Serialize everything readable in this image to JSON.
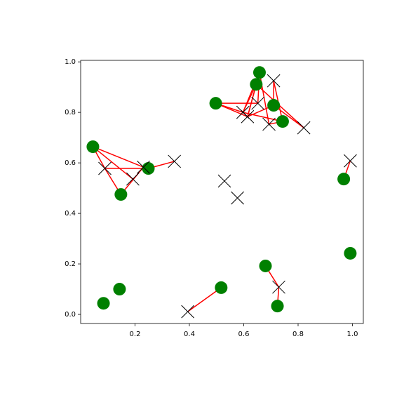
{
  "chart_data": {
    "type": "scatter",
    "xlim": [
      0.0,
      1.04
    ],
    "ylim": [
      -0.036,
      1.006
    ],
    "xticks": [
      0.2,
      0.4,
      0.6,
      0.8,
      {
        "value": 1.0,
        "label": "1.0"
      }
    ],
    "yticks": [
      {
        "value": 0.0,
        "label": "0.0"
      },
      0.2,
      0.4,
      0.6,
      0.8,
      {
        "value": 1.0,
        "label": "1.0"
      }
    ],
    "series": [
      {
        "marker": "circle",
        "color": "#008000",
        "x": [
          0.045,
          0.148,
          0.249,
          0.497,
          0.658,
          0.646,
          0.71,
          0.743,
          0.968,
          0.992,
          0.68,
          0.724,
          0.517,
          0.143,
          0.084
        ],
        "y": [
          0.664,
          0.475,
          0.578,
          0.836,
          0.958,
          0.911,
          0.828,
          0.764,
          0.536,
          0.242,
          0.192,
          0.033,
          0.106,
          0.1,
          0.044
        ]
      },
      {
        "marker": "x",
        "color": "#000000",
        "x": [
          0.089,
          0.231,
          0.192,
          0.345,
          0.529,
          0.577,
          0.394,
          0.729,
          0.992,
          0.614,
          0.597,
          0.652,
          0.693,
          0.71,
          0.821
        ],
        "y": [
          0.578,
          0.583,
          0.536,
          0.606,
          0.528,
          0.461,
          0.011,
          0.108,
          0.608,
          0.783,
          0.8,
          0.836,
          0.753,
          0.925,
          0.739
        ]
      }
    ],
    "link_color": "#ff0000",
    "links": [
      [
        0,
        0
      ],
      [
        0,
        1
      ],
      [
        0,
        2
      ],
      [
        1,
        0
      ],
      [
        1,
        1
      ],
      [
        2,
        0
      ],
      [
        2,
        3
      ],
      [
        3,
        9
      ],
      [
        3,
        10
      ],
      [
        3,
        11
      ],
      [
        4,
        9
      ],
      [
        4,
        10
      ],
      [
        4,
        11
      ],
      [
        4,
        12
      ],
      [
        5,
        9
      ],
      [
        5,
        10
      ],
      [
        5,
        14
      ],
      [
        6,
        13
      ],
      [
        6,
        9
      ],
      [
        6,
        14
      ],
      [
        7,
        13
      ],
      [
        7,
        10
      ],
      [
        7,
        12
      ],
      [
        8,
        8
      ],
      [
        10,
        7
      ],
      [
        11,
        7
      ],
      [
        12,
        6
      ]
    ]
  }
}
